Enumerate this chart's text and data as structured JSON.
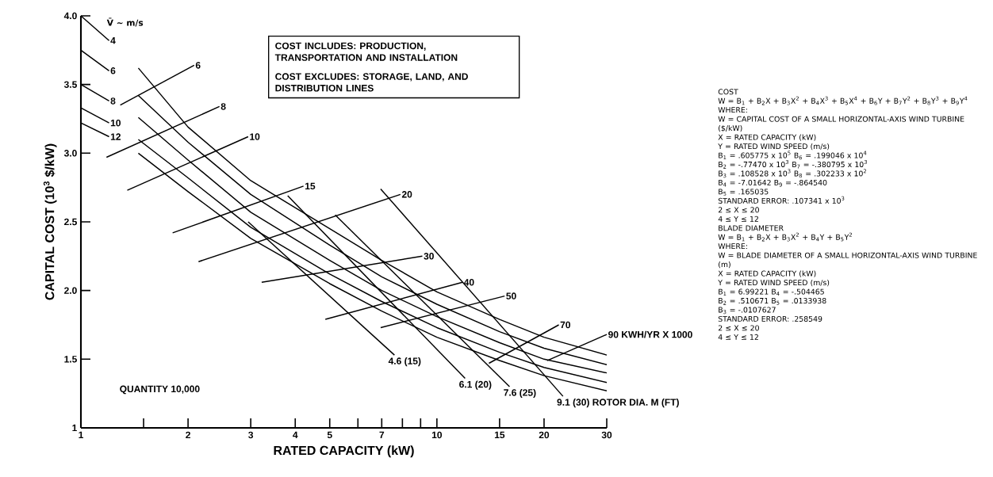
{
  "chart_data": {
    "type": "line",
    "xlabel": "RATED CAPACITY (kW)",
    "ylabel": "CAPITAL COST (10$^{3}$ $/kW)",
    "log": "x",
    "marker": "none",
    "xlim": [
      1,
      30
    ],
    "ylim": [
      1,
      4
    ],
    "xticks": [
      1,
      {
        "value": 1.5,
        "label": null
      },
      2,
      3,
      4,
      5,
      {
        "value": 6,
        "label": null
      },
      7,
      {
        "value": 8,
        "label": null
      },
      {
        "value": 9,
        "label": null
      },
      10,
      15,
      20,
      30
    ],
    "yticks": [
      1,
      {
        "value": 1.5,
        "label": "1.5"
      },
      {
        "value": 2,
        "label": "2.0"
      },
      {
        "value": 2.5,
        "label": "2.5"
      },
      {
        "value": 3,
        "label": "3.0"
      },
      {
        "value": 3.5,
        "label": "3.5"
      },
      {
        "value": 4,
        "label": "4.0"
      }
    ],
    "series": [
      {
        "name": "4",
        "color": "#000000",
        "x": [
          1,
          1.2,
          1.3,
          1.45,
          2,
          3,
          5,
          7,
          10,
          15,
          20,
          30
        ],
        "values": [
          4.0,
          3.82,
          null,
          3.62,
          3.19,
          2.8,
          2.45,
          2.22,
          1.99,
          1.79,
          1.66,
          1.53
        ]
      },
      {
        "name": "6",
        "color": "#000000",
        "x": [
          1,
          1.2,
          1.3,
          1.45,
          2,
          3,
          5,
          7,
          10,
          15,
          20,
          30
        ],
        "values": [
          3.75,
          3.6,
          null,
          3.42,
          3.08,
          2.7,
          2.33,
          2.1,
          1.9,
          1.7,
          1.58,
          1.46
        ]
      },
      {
        "name": "8",
        "color": "#000000",
        "x": [
          1,
          1.2,
          1.3,
          1.45,
          2,
          3,
          5,
          7,
          10,
          15,
          20,
          30
        ],
        "values": [
          3.5,
          3.38,
          null,
          3.26,
          2.95,
          2.57,
          2.22,
          2.0,
          1.81,
          1.62,
          1.5,
          1.4
        ]
      },
      {
        "name": "10",
        "color": "#000000",
        "x": [
          1,
          1.2,
          1.3,
          1.45,
          2,
          3,
          5,
          7,
          10,
          15,
          20,
          30
        ],
        "values": [
          3.33,
          3.22,
          null,
          3.1,
          2.82,
          2.46,
          2.12,
          1.92,
          1.73,
          1.55,
          1.44,
          1.33
        ]
      },
      {
        "name": "12",
        "color": "#000000",
        "x": [
          1,
          1.2,
          1.3,
          1.45,
          2,
          3,
          5,
          7,
          10,
          15,
          20,
          30
        ],
        "values": [
          3.22,
          3.12,
          null,
          3.0,
          2.72,
          2.38,
          2.05,
          1.85,
          1.66,
          1.49,
          1.38,
          1.27
        ]
      },
      {
        "name": "6",
        "color": "#000000",
        "x": [
          1.29,
          2.08
        ],
        "values": [
          3.35,
          3.64
        ]
      },
      {
        "name": "8",
        "color": "#000000",
        "x": [
          1.18,
          2.45
        ],
        "values": [
          2.97,
          3.34
        ]
      },
      {
        "name": "10",
        "color": "#000000",
        "x": [
          1.35,
          2.95
        ],
        "values": [
          2.73,
          3.12
        ]
      },
      {
        "name": "15",
        "color": "#000000",
        "x": [
          1.81,
          4.22
        ],
        "values": [
          2.42,
          2.76
        ]
      },
      {
        "name": "20",
        "color": "#000000",
        "x": [
          2.14,
          7.9
        ],
        "values": [
          2.21,
          2.7
        ]
      },
      {
        "name": "30",
        "color": "#000000",
        "x": [
          3.22,
          9.1
        ],
        "values": [
          2.06,
          2.25
        ]
      },
      {
        "name": "40",
        "color": "#000000",
        "x": [
          4.86,
          11.8
        ],
        "values": [
          1.79,
          2.06
        ]
      },
      {
        "name": "50",
        "color": "#000000",
        "x": [
          6.95,
          15.5
        ],
        "values": [
          1.73,
          1.96
        ]
      },
      {
        "name": "70",
        "color": "#000000",
        "x": [
          14,
          22
        ],
        "values": [
          1.47,
          1.75
        ]
      },
      {
        "name": "90 KWH/YR X 1000",
        "color": "#000000",
        "x": [
          20.4,
          30
        ],
        "values": [
          1.49,
          1.68
        ]
      },
      {
        "name": "4.6 (15)",
        "color": "#000000",
        "x": [
          2.95,
          7.6
        ],
        "values": [
          2.5,
          1.53
        ]
      },
      {
        "name": "6.1 (20)",
        "color": "#000000",
        "x": [
          3.81,
          12
        ],
        "values": [
          2.69,
          1.36
        ]
      },
      {
        "name": "7.6 (25)",
        "color": "#000000",
        "x": [
          5.18,
          16
        ],
        "values": [
          2.55,
          1.3
        ]
      },
      {
        "name": "9.1 (30) ROTOR DIA. M (FT)",
        "color": "#000000",
        "x": [
          6.95,
          22.6
        ],
        "values": [
          2.74,
          1.23
        ]
      }
    ],
    "annotations": [
      "COST INCLUDES: PRODUCTION, TRANSPORTATION AND INSTALLATION",
      "COST EXCLUDES: STORAGE, LAND, AND DISTRIBUTION LINES",
      "QUANTITY 10,000",
      "V̄ ~ m/s",
      "COST",
      "W = B$_{1}$ + B$_{2}$X + B$_{3}$X$^{2}$ + B$_{4}$X$^{3}$ + B$_{5}$X$^{4}$ + B$_{6}$Y + B$_{7}$Y$^{2}$ + B$_{8}$Y$^{3}$ + B$_{9}$Y$^{4}$",
      "WHERE:",
      "W = CAPITAL COST OF A SMALL HORIZONTAL-AXIS WIND TURBINE ($/kW)",
      "X = RATED CAPACITY (kW)",
      "Y = RATED WIND SPEED (m/s)",
      "B$_{1}$ = .605775 x 10$^{5}$   B$_{6}$ = .199046 x 10$^{4}$",
      "B$_{2}$ = -.77470 x 10$^{3}$   B$_{7}$ = -.380795 x 10$^{3}$",
      "B$_{3}$ = .108528 x 10$^{3}$   B$_{8}$ = .302233 x 10$^{2}$",
      "B$_{4}$ = -7.01642   B$_{9}$ = -.864540",
      "B$_{5}$ = .165035",
      "STANDARD ERROR: .107341 x 10$^{3}$",
      "2 ≤ X ≤ 20",
      "4 ≤ Y ≤ 12",
      "BLADE DIAMETER",
      "W = B$_{1}$ + B$_{2}$X + B$_{3}$X$^{2}$ + B$_{4}$Y + B$_{5}$Y$^{2}$",
      "WHERE:",
      "W = BLADE DIAMETER OF A SMALL HORIZONTAL-AXIS WIND TURBINE (m)",
      "X = RATED CAPACITY (kW)",
      "Y = RATED WIND SPEED (m/s)",
      "B$_{1}$ = 6.99221   B$_{4}$ = -.504465",
      "B$_{2}$ = .510671   B$_{5}$ = .0133938",
      "B$_{3}$ = -.0107627",
      "STANDARD ERROR: .258549",
      "2 ≤ X ≤ 20",
      "4 ≤ Y ≤ 12"
    ]
  }
}
